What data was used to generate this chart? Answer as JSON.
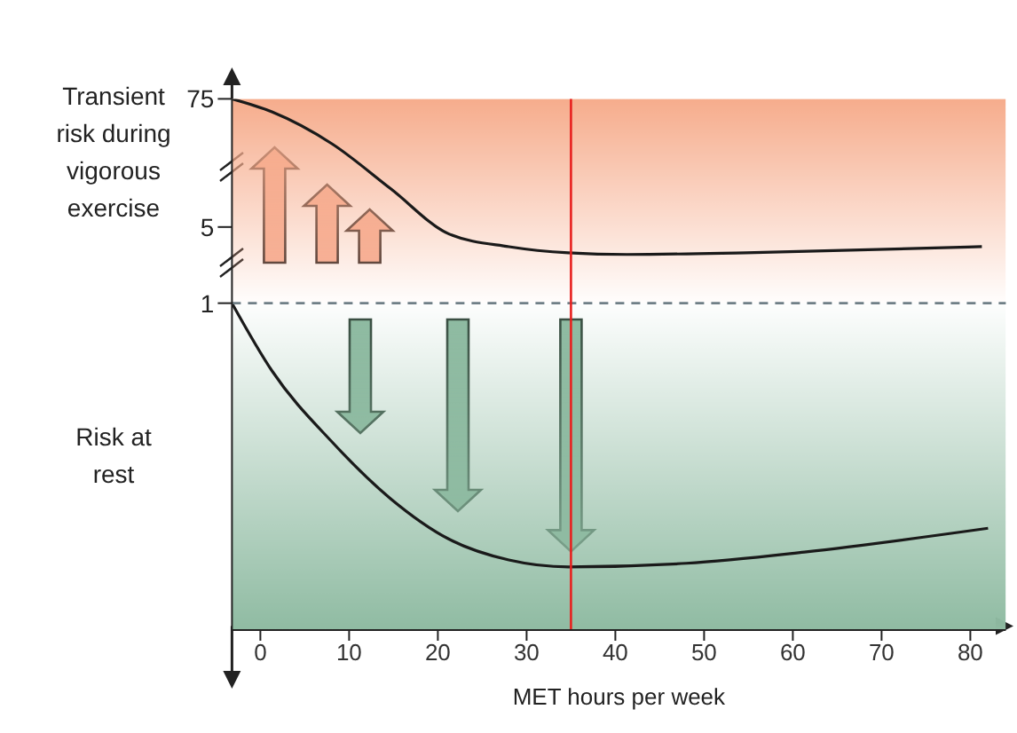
{
  "chart_data": {
    "type": "line",
    "xlabel": "MET hours per week",
    "annotations": [
      "Transient risk during vigorous exercise",
      "Risk at rest"
    ],
    "xlim": [
      -3.2,
      84
    ],
    "xticks": [
      0,
      10,
      20,
      30,
      40,
      50,
      60,
      70,
      80
    ],
    "ylim": [
      0.001,
      75
    ],
    "yticks": [
      1,
      5,
      75
    ],
    "log": true,
    "marker": "none",
    "line_style": "solid",
    "series": [
      {
        "color": "#1a1a1a",
        "x": [
          -3.2,
          1.3,
          8.1,
          14.7,
          21.3,
          28,
          34.7,
          41.3,
          54.7,
          81.3
        ],
        "values": [
          75,
          57,
          28.9,
          11.2,
          4.3,
          3.3,
          2.9,
          2.8,
          2.9,
          3.3
        ]
      },
      {
        "color": "#1a1a1a",
        "x": [
          -3.2,
          1.3,
          8.1,
          14.7,
          21.3,
          28,
          34.7,
          48,
          61.3,
          82
        ],
        "values": [
          1,
          0.24,
          0.053,
          0.016,
          0.0068,
          0.0044,
          0.0038,
          0.0041,
          0.0052,
          0.0086
        ]
      }
    ],
    "bands": [
      {
        "axis": "y",
        "from": 1,
        "to": 75,
        "color": "#f6ac8c"
      },
      {
        "axis": "y",
        "from": 0.001,
        "to": 1,
        "color": "#8fbba2"
      }
    ],
    "ref_lines": [
      {
        "axis": "y",
        "value": 1,
        "color": "#6f7f86",
        "line_style": "dashed"
      },
      {
        "axis": "x",
        "value": 35,
        "color": "#e8201e",
        "line_style": "solid"
      }
    ]
  }
}
